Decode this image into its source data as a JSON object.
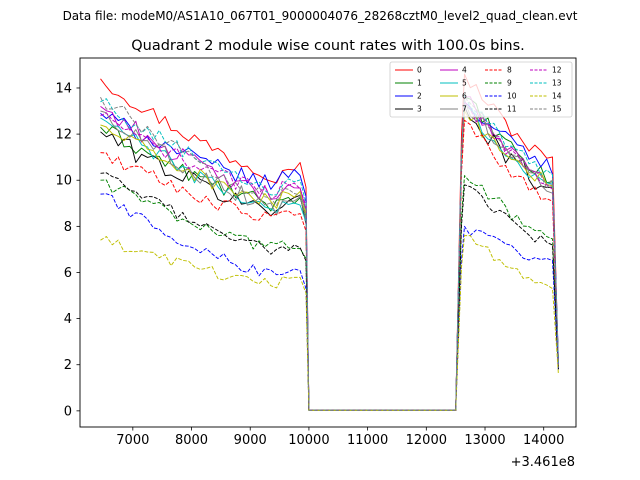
{
  "suptitle": "Data file: modeM0/AS1A10_067T01_9000004076_28268cztM0_level2_quad_clean.evt",
  "chart_data": {
    "type": "line",
    "title": "Quadrant 2 module wise count rates with 100.0s bins.",
    "xlabel": "",
    "ylabel": "",
    "x_offset_label": "+3.461e8",
    "xlim": [
      6100,
      14550
    ],
    "ylim": [
      -0.7,
      15.3
    ],
    "xticks": [
      7000,
      8000,
      9000,
      10000,
      11000,
      12000,
      13000,
      14000
    ],
    "yticks": [
      0,
      2,
      4,
      6,
      8,
      10,
      12,
      14
    ],
    "legend_position": "top-right",
    "segments": [
      {
        "x_start": 6450,
        "x_end": 9850,
        "step": 100
      },
      {
        "x_start": 12650,
        "x_end": 14150,
        "step": 100
      }
    ],
    "gap": {
      "drop_start": 9950,
      "low_start": 10000,
      "low_end": 12500,
      "low_value": 0.02,
      "rise_end": 12600,
      "final_x": 14250
    },
    "series": [
      {
        "name": "0",
        "color": "#ff0000",
        "dash": "solid",
        "seg1_start": 14.4,
        "seg1_end": 10.0,
        "end_spike": 10.6,
        "seg2_peak": 14.6,
        "seg2_end": 10.8,
        "final": 2.0,
        "amp": 0.35
      },
      {
        "name": "1",
        "color": "#008000",
        "dash": "solid",
        "seg1_start": 12.3,
        "seg1_end": 8.7,
        "end_spike": 9.2,
        "seg2_peak": 13.6,
        "seg2_end": 10.0,
        "final": 2.0,
        "amp": 0.35
      },
      {
        "name": "2",
        "color": "#0000ff",
        "dash": "solid",
        "seg1_start": 12.9,
        "seg1_end": 9.6,
        "end_spike": 10.3,
        "seg2_peak": 13.4,
        "seg2_end": 10.6,
        "final": 2.2,
        "amp": 0.35
      },
      {
        "name": "3",
        "color": "#000000",
        "dash": "solid",
        "seg1_start": 12.1,
        "seg1_end": 8.4,
        "end_spike": 9.1,
        "seg2_peak": 13.2,
        "seg2_end": 9.6,
        "final": 2.0,
        "amp": 0.45
      },
      {
        "name": "4",
        "color": "#bf00bf",
        "dash": "solid",
        "seg1_start": 13.2,
        "seg1_end": 9.0,
        "end_spike": 9.6,
        "seg2_peak": 13.6,
        "seg2_end": 10.0,
        "final": 2.0,
        "amp": 0.4
      },
      {
        "name": "5",
        "color": "#00bfbf",
        "dash": "solid",
        "seg1_start": 12.7,
        "seg1_end": 8.5,
        "end_spike": 9.0,
        "seg2_peak": 13.3,
        "seg2_end": 9.6,
        "final": 2.0,
        "amp": 0.35
      },
      {
        "name": "6",
        "color": "#bfbf00",
        "dash": "solid",
        "seg1_start": 12.4,
        "seg1_end": 8.8,
        "end_spike": 9.3,
        "seg2_peak": 13.0,
        "seg2_end": 9.8,
        "final": 2.0,
        "amp": 0.35
      },
      {
        "name": "7",
        "color": "#808080",
        "dash": "solid",
        "seg1_start": 13.0,
        "seg1_end": 8.6,
        "end_spike": 9.2,
        "seg2_peak": 13.5,
        "seg2_end": 9.8,
        "final": 2.0,
        "amp": 0.4
      },
      {
        "name": "8",
        "color": "#ff0000",
        "dash": "dashed",
        "seg1_start": 11.2,
        "seg1_end": 8.1,
        "end_spike": 8.6,
        "seg2_peak": 12.6,
        "seg2_end": 9.0,
        "final": 1.9,
        "amp": 0.3
      },
      {
        "name": "9",
        "color": "#008000",
        "dash": "dashed",
        "seg1_start": 10.0,
        "seg1_end": 6.9,
        "end_spike": 7.2,
        "seg2_peak": 10.2,
        "seg2_end": 7.6,
        "final": 1.8,
        "amp": 0.3
      },
      {
        "name": "10",
        "color": "#0000ff",
        "dash": "dashed",
        "seg1_start": 9.4,
        "seg1_end": 5.6,
        "end_spike": 6.0,
        "seg2_peak": 8.0,
        "seg2_end": 6.3,
        "final": 1.8,
        "amp": 0.3
      },
      {
        "name": "11",
        "color": "#000000",
        "dash": "dashed",
        "seg1_start": 10.3,
        "seg1_end": 6.8,
        "end_spike": 7.1,
        "seg2_peak": 9.8,
        "seg2_end": 7.2,
        "final": 1.8,
        "amp": 0.25
      },
      {
        "name": "12",
        "color": "#bf00bf",
        "dash": "dashed",
        "seg1_start": 12.8,
        "seg1_end": 9.2,
        "end_spike": 9.8,
        "seg2_peak": 13.4,
        "seg2_end": 9.9,
        "final": 2.0,
        "amp": 0.35
      },
      {
        "name": "13",
        "color": "#00bfbf",
        "dash": "dashed",
        "seg1_start": 13.4,
        "seg1_end": 9.3,
        "end_spike": 9.9,
        "seg2_peak": 13.7,
        "seg2_end": 10.1,
        "final": 2.0,
        "amp": 0.35
      },
      {
        "name": "14",
        "color": "#bfbf00",
        "dash": "dashed",
        "seg1_start": 7.4,
        "seg1_end": 5.4,
        "end_spike": 5.8,
        "seg2_peak": 7.6,
        "seg2_end": 5.4,
        "final": 1.6,
        "amp": 0.25
      },
      {
        "name": "15",
        "color": "#808080",
        "dash": "dashed",
        "seg1_start": 13.6,
        "seg1_end": 9.0,
        "end_spike": 9.5,
        "seg2_peak": 13.6,
        "seg2_end": 9.8,
        "final": 2.0,
        "amp": 0.35
      }
    ]
  }
}
